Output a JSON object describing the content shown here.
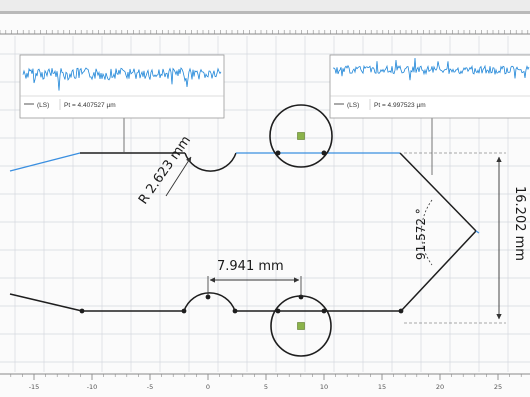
{
  "viewer": {
    "colors": {
      "background": "#fbfbfb",
      "grid": "#d4d9de",
      "contour": "#1e1e1e",
      "highlight": "#3a8fe0",
      "profile_signal": "#1f86d8",
      "center_marker": "#8bb34a",
      "toolbar": "#b9b9b9"
    }
  },
  "profile_left": {
    "legend_name": "(LS)",
    "legend_value": "Pt = 4.407527 µm"
  },
  "profile_right": {
    "legend_name": "(LS)",
    "legend_value": "Pt = 4.997523 µm"
  },
  "dimensions": {
    "radius": "R 2.623 mm",
    "distance": "7.941 mm",
    "angle": "91.572 °",
    "height": "16.202 mm"
  },
  "x_axis": {
    "ticks": [
      {
        "value": -15,
        "label": "-15"
      },
      {
        "value": -10,
        "label": "-10"
      },
      {
        "value": -5,
        "label": "-5"
      },
      {
        "value": 0,
        "label": "0"
      },
      {
        "value": 5,
        "label": "5"
      },
      {
        "value": 10,
        "label": "10"
      },
      {
        "value": 15,
        "label": "15"
      },
      {
        "value": 20,
        "label": "20"
      },
      {
        "value": 25,
        "label": "25"
      }
    ]
  }
}
